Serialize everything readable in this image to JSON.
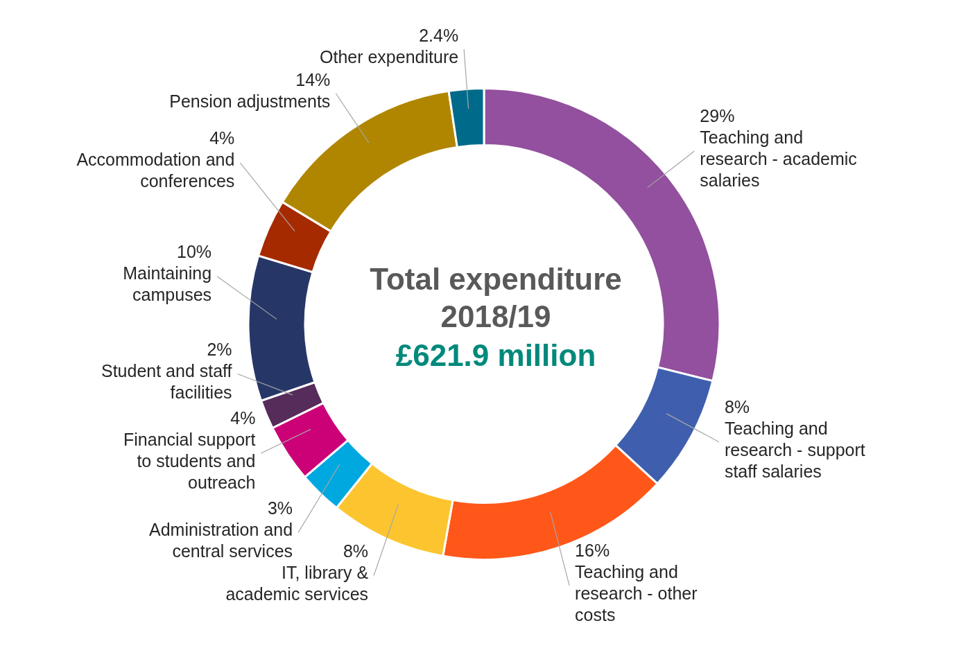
{
  "chart_data": {
    "type": "donut",
    "title": "Total expenditure 2018/19",
    "subtitle": "£621.9 million",
    "categories": [
      "Teaching and research - academic salaries",
      "Teaching and research - support staff salaries",
      "Teaching and research - other costs",
      "IT, library & academic services",
      "Administration and central services",
      "Financial support to students and outreach",
      "Student and staff facilities",
      "Maintaining campuses",
      "Accommodation and conferences",
      "Pension adjustments",
      "Other expenditure"
    ],
    "values": [
      29,
      8,
      16,
      8,
      3,
      4,
      2,
      10,
      4,
      14,
      2.4
    ],
    "value_labels": [
      "29%",
      "8%",
      "16%",
      "8%",
      "3%",
      "4%",
      "2%",
      "10%",
      "4%",
      "14%",
      "2.4%"
    ],
    "colors": [
      "#92509e",
      "#3f5fae",
      "#ff5719",
      "#fcc52f",
      "#00a8e0",
      "#cc0077",
      "#552c5a",
      "#263767",
      "#a62a00",
      "#b08600",
      "#006a8a"
    ]
  }
}
